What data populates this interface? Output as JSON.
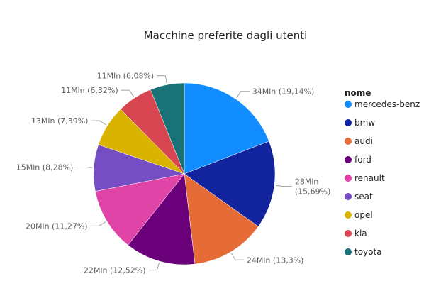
{
  "chart_data": {
    "type": "pie",
    "title": "Macchine preferite dagli utenti",
    "legend_title": "nome",
    "legend_position": "right",
    "slices": [
      {
        "name": "mercedes-benz",
        "value": 34,
        "percent": 19.14,
        "label": "34Mln (19,14%)",
        "color": "#118DFF"
      },
      {
        "name": "bmw",
        "value": 28,
        "percent": 15.69,
        "label": "28Mln (15,69%)",
        "color": "#12239E"
      },
      {
        "name": "audi",
        "value": 24,
        "percent": 13.3,
        "label": "24Mln (13,3%)",
        "color": "#E66C37"
      },
      {
        "name": "ford",
        "value": 22,
        "percent": 12.52,
        "label": "22Mln (12,52%)",
        "color": "#6B007B"
      },
      {
        "name": "renault",
        "value": 20,
        "percent": 11.27,
        "label": "20Mln (11,27%)",
        "color": "#E044A7"
      },
      {
        "name": "seat",
        "value": 15,
        "percent": 8.28,
        "label": "15Mln (8,28%)",
        "color": "#744EC2"
      },
      {
        "name": "opel",
        "value": 13,
        "percent": 7.39,
        "label": "13Mln (7,39%)",
        "color": "#D9B300"
      },
      {
        "name": "kia",
        "value": 11,
        "percent": 6.32,
        "label": "11Mln (6,32%)",
        "color": "#D64550"
      },
      {
        "name": "toyota",
        "value": 11,
        "percent": 6.08,
        "label": "11Mln (6,08%)",
        "color": "#197278"
      }
    ]
  }
}
